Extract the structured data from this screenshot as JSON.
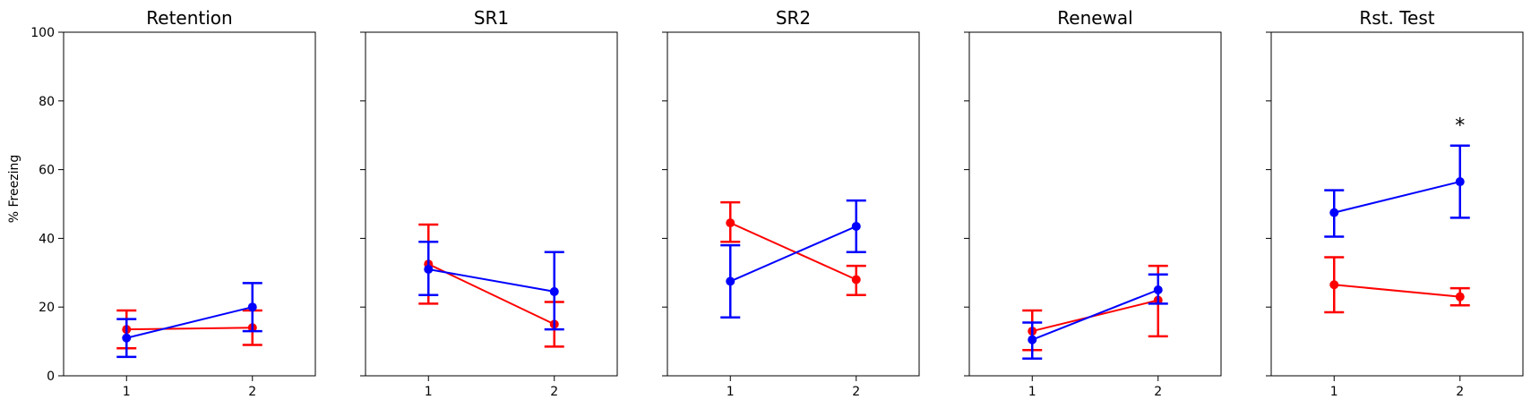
{
  "chart_data": {
    "type": "line",
    "ylabel": "% Freezing",
    "ylim": [
      0,
      100
    ],
    "yticks": [
      0,
      20,
      40,
      60,
      80,
      100
    ],
    "xlim": [
      0.5,
      2.5
    ],
    "x": [
      1,
      2
    ],
    "grid": false,
    "legend": "none",
    "series_colors": {
      "red": "#ff0000",
      "blue": "#0000ff"
    },
    "panels": [
      {
        "title": "Retention",
        "series": [
          {
            "color": "red",
            "values": [
              13.5,
              14.0
            ],
            "err_low": [
              8.0,
              9.0
            ],
            "err_high": [
              19.0,
              19.0
            ]
          },
          {
            "color": "blue",
            "values": [
              11.0,
              20.0
            ],
            "err_low": [
              5.5,
              13.0
            ],
            "err_high": [
              16.5,
              27.0
            ]
          }
        ]
      },
      {
        "title": "SR1",
        "series": [
          {
            "color": "red",
            "values": [
              32.5,
              15.0
            ],
            "err_low": [
              21.0,
              8.5
            ],
            "err_high": [
              44.0,
              21.5
            ]
          },
          {
            "color": "blue",
            "values": [
              31.0,
              24.5
            ],
            "err_low": [
              23.5,
              13.5
            ],
            "err_high": [
              39.0,
              36.0
            ]
          }
        ]
      },
      {
        "title": "SR2",
        "series": [
          {
            "color": "red",
            "values": [
              44.5,
              28.0
            ],
            "err_low": [
              39.0,
              23.5
            ],
            "err_high": [
              50.5,
              32.0
            ]
          },
          {
            "color": "blue",
            "values": [
              27.5,
              43.5
            ],
            "err_low": [
              17.0,
              36.0
            ],
            "err_high": [
              38.0,
              51.0
            ]
          }
        ]
      },
      {
        "title": "Renewal",
        "series": [
          {
            "color": "red",
            "values": [
              13.0,
              22.0
            ],
            "err_low": [
              7.5,
              11.5
            ],
            "err_high": [
              19.0,
              32.0
            ]
          },
          {
            "color": "blue",
            "values": [
              10.5,
              25.0
            ],
            "err_low": [
              5.0,
              21.0
            ],
            "err_high": [
              15.5,
              29.5
            ]
          }
        ]
      },
      {
        "title": "Rst. Test",
        "annotation": "*",
        "annotation_x": 2,
        "annotation_y": 73,
        "series": [
          {
            "color": "red",
            "values": [
              26.5,
              23.0
            ],
            "err_low": [
              18.5,
              20.5
            ],
            "err_high": [
              34.5,
              25.5
            ]
          },
          {
            "color": "blue",
            "values": [
              47.5,
              56.5
            ],
            "err_low": [
              40.5,
              46.0
            ],
            "err_high": [
              54.0,
              67.0
            ]
          }
        ]
      }
    ]
  }
}
